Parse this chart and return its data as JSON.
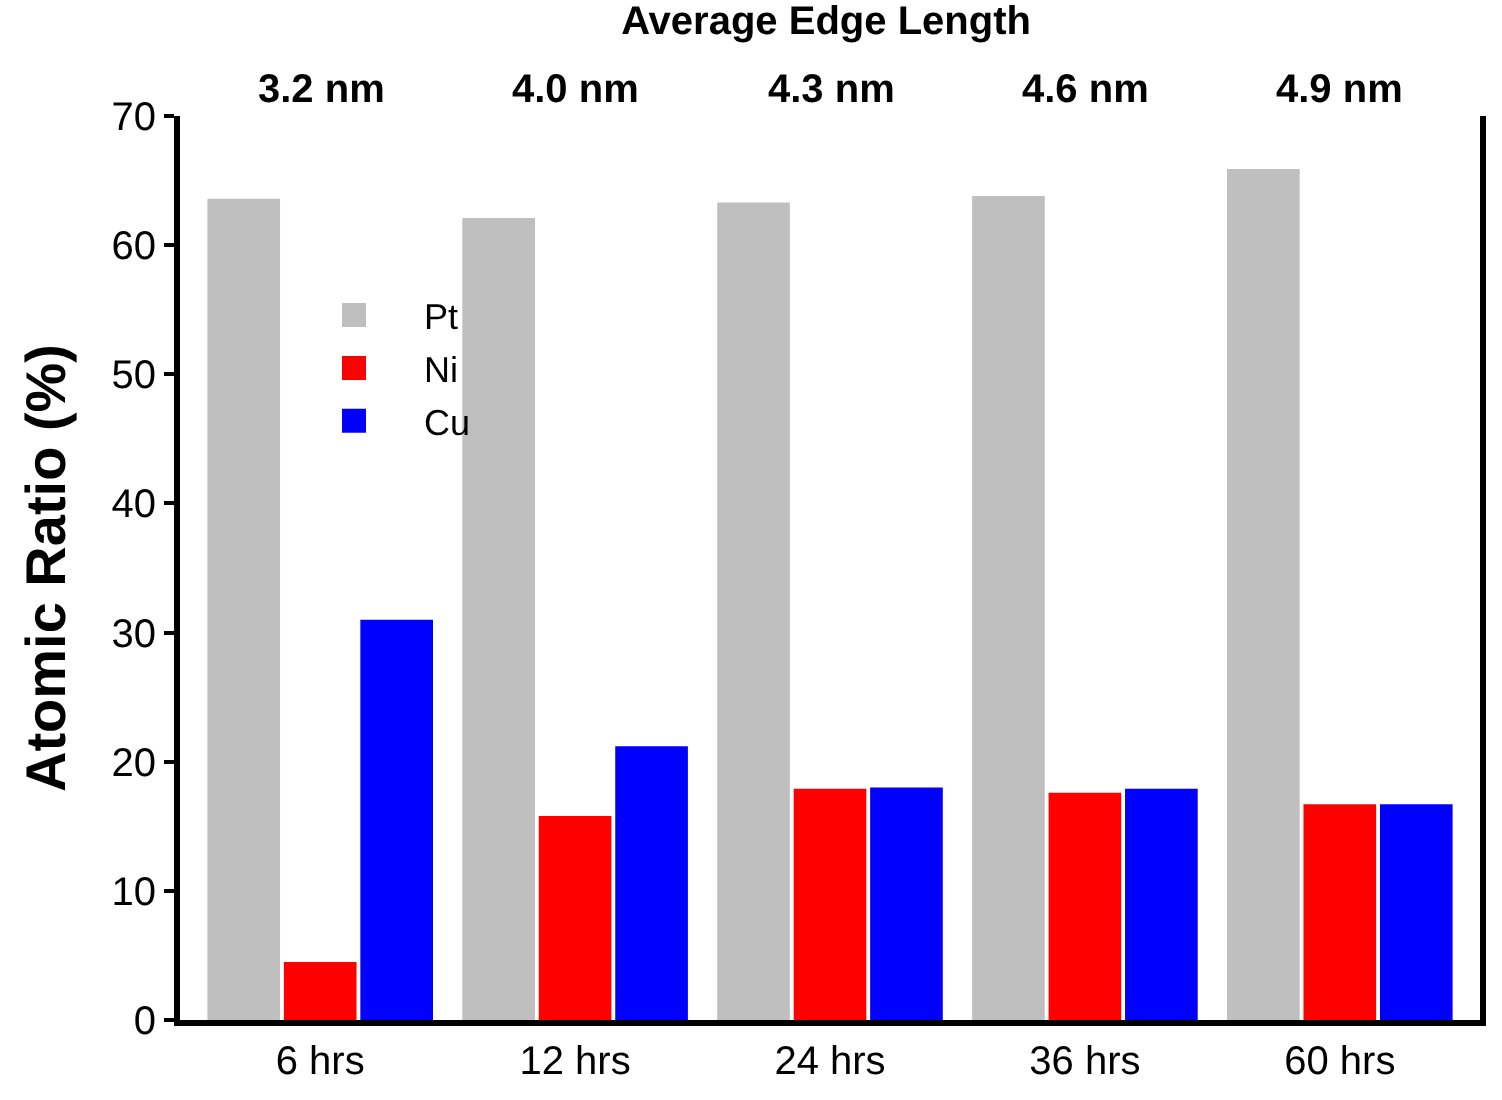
{
  "chart_data": {
    "type": "bar",
    "title": "Average Edge Length",
    "ylabel": "Atomic Ratio (%)",
    "categories": [
      "6 hrs",
      "12 hrs",
      "24 hrs",
      "36 hrs",
      "60 hrs"
    ],
    "series": [
      {
        "name": "Pt",
        "color": "#bfbfbf",
        "values": [
          63.6,
          62.1,
          63.3,
          63.8,
          65.9
        ]
      },
      {
        "name": "Ni",
        "color": "#ff0000",
        "values": [
          4.5,
          15.8,
          17.9,
          17.6,
          16.7
        ]
      },
      {
        "name": "Cu",
        "color": "#0000ff",
        "values": [
          31.0,
          21.2,
          18.0,
          17.9,
          16.7
        ]
      }
    ],
    "annotations": [
      "3.2 nm",
      "4.0 nm",
      "4.3 nm",
      "4.6 nm",
      "4.9 nm"
    ],
    "ylim": [
      0,
      70
    ],
    "yticks": [
      0,
      10,
      20,
      30,
      40,
      50,
      60,
      70
    ],
    "legend": "top left"
  }
}
